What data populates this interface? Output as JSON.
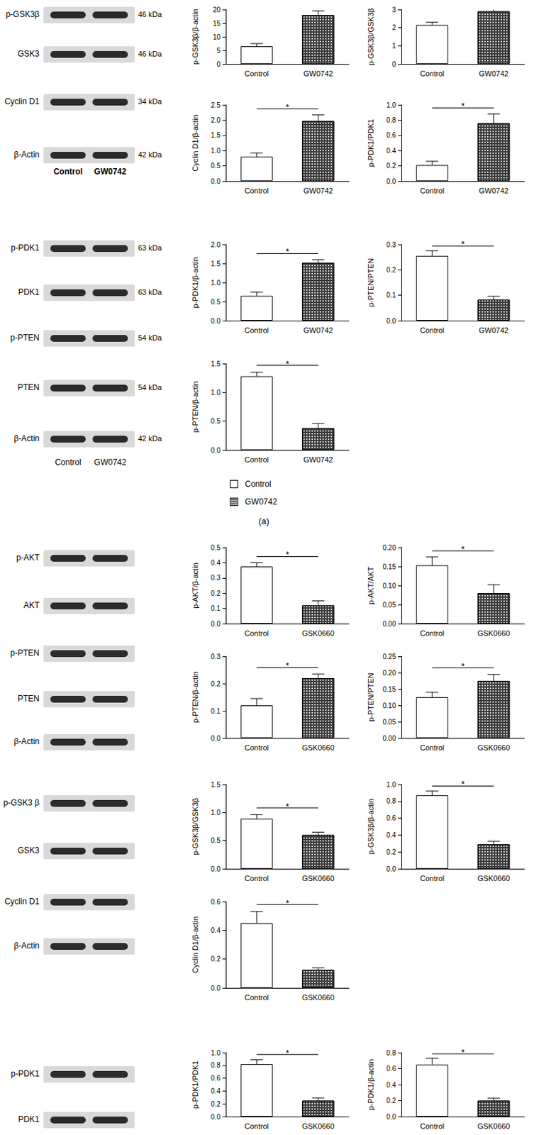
{
  "chart_data": [
    {
      "type": "bar",
      "ylabel": "p-GSK3β/β-actin",
      "categories": [
        "Control",
        "GW0742"
      ],
      "values": [
        6.5,
        18
      ],
      "errors": [
        1.0,
        1.5
      ],
      "colors": [
        "#ffffff",
        "#3a3a3a"
      ],
      "ylim": [
        0,
        20
      ],
      "yticks": [
        0,
        5,
        10,
        15,
        20
      ]
    },
    {
      "type": "bar",
      "ylabel": "p-GSK3β/GSK3β",
      "categories": [
        "Control",
        "GW0742"
      ],
      "values": [
        2.15,
        2.9
      ],
      "errors": [
        0.15,
        0.2
      ],
      "colors": [
        "#ffffff",
        "#3a3a3a"
      ],
      "ylim": [
        0,
        3
      ],
      "yticks": [
        0,
        1,
        2,
        3
      ]
    },
    {
      "type": "bar",
      "ylabel": "Cyclin D1/β-actin",
      "categories": [
        "Control",
        "GW0742"
      ],
      "values": [
        0.8,
        1.97
      ],
      "errors": [
        0.12,
        0.2
      ],
      "colors": [
        "#ffffff",
        "#3a3a3a"
      ],
      "ylim": [
        0,
        2.5
      ],
      "yticks": [
        {
          "value": 0,
          "label": "0.0"
        },
        0.5,
        {
          "value": 1,
          "label": "1.0"
        },
        1.5,
        {
          "value": 2,
          "label": "2.0"
        },
        2.5
      ],
      "annotation": "*"
    },
    {
      "type": "bar",
      "ylabel": "p-PDK1/PDK1",
      "categories": [
        "Control",
        "GW0742"
      ],
      "values": [
        0.21,
        0.76
      ],
      "errors": [
        0.05,
        0.12
      ],
      "colors": [
        "#ffffff",
        "#3a3a3a"
      ],
      "ylim": [
        0,
        1
      ],
      "yticks": [
        {
          "value": 0,
          "label": "0.0"
        },
        0.2,
        0.4,
        0.6,
        0.8,
        {
          "value": 1,
          "label": "1.0"
        }
      ],
      "annotation": "*"
    },
    {
      "type": "bar",
      "ylabel": "p-PDK1/β-actin",
      "categories": [
        "Control",
        "GW0742"
      ],
      "values": [
        0.65,
        1.52
      ],
      "errors": [
        0.1,
        0.08
      ],
      "colors": [
        "#ffffff",
        "#3a3a3a"
      ],
      "ylim": [
        0,
        2
      ],
      "yticks": [
        {
          "value": 0,
          "label": "0.0"
        },
        0.5,
        {
          "value": 1,
          "label": "1.0"
        },
        1.5,
        {
          "value": 2,
          "label": "2.0"
        }
      ],
      "annotation": "*"
    },
    {
      "type": "bar",
      "ylabel": "p-PTEN/PTEN",
      "categories": [
        "Control",
        "GW0742"
      ],
      "values": [
        0.255,
        0.083
      ],
      "errors": [
        0.02,
        0.013
      ],
      "colors": [
        "#ffffff",
        "#3a3a3a"
      ],
      "ylim": [
        0,
        0.3
      ],
      "yticks": [
        {
          "value": 0,
          "label": "0.0"
        },
        0.1,
        0.2,
        0.3
      ],
      "annotation": "*"
    },
    {
      "type": "bar",
      "ylabel": "p-PTEN/β-actin",
      "categories": [
        "Control",
        "GW0742"
      ],
      "values": [
        1.28,
        0.38
      ],
      "errors": [
        0.07,
        0.08
      ],
      "colors": [
        "#ffffff",
        "#3a3a3a"
      ],
      "ylim": [
        0,
        1.5
      ],
      "yticks": [
        {
          "value": 0,
          "label": "0.0"
        },
        0.5,
        {
          "value": 1,
          "label": "1.0"
        },
        1.5
      ],
      "annotation": "*"
    },
    {
      "type": "bar",
      "ylabel": "p-AKT/β-actin",
      "categories": [
        "Control",
        "GSK0660"
      ],
      "values": [
        0.375,
        0.12
      ],
      "errors": [
        0.025,
        0.03
      ],
      "colors": [
        "#ffffff",
        "#3a3a3a"
      ],
      "ylim": [
        0,
        0.5
      ],
      "yticks": [
        {
          "value": 0,
          "label": "0.0"
        },
        0.1,
        0.2,
        0.3,
        0.4,
        0.5
      ],
      "annotation": "*"
    },
    {
      "type": "bar",
      "ylabel": "p-AKT/AKT",
      "categories": [
        "Control",
        "GSK0660"
      ],
      "values": [
        0.153,
        0.08
      ],
      "errors": [
        0.022,
        0.022
      ],
      "colors": [
        "#ffffff",
        "#3a3a3a"
      ],
      "ylim": [
        0,
        0.2
      ],
      "yticks": [
        {
          "value": 0,
          "label": "0.00"
        },
        0.05,
        {
          "value": 0.1,
          "label": "0.10"
        },
        0.15,
        {
          "value": 0.2,
          "label": "0.20"
        }
      ],
      "annotation": "*"
    },
    {
      "type": "bar",
      "ylabel": "p-PTEN/β-actin",
      "categories": [
        "Control",
        "GSK0660"
      ],
      "values": [
        0.12,
        0.22
      ],
      "errors": [
        0.025,
        0.015
      ],
      "colors": [
        "#ffffff",
        "#3a3a3a"
      ],
      "ylim": [
        0,
        0.3
      ],
      "yticks": [
        {
          "value": 0,
          "label": "0.0"
        },
        0.1,
        0.2,
        0.3
      ],
      "annotation": "*"
    },
    {
      "type": "bar",
      "ylabel": "p-PTEN/PTEN",
      "categories": [
        "Control",
        "GSK0660"
      ],
      "values": [
        0.125,
        0.175
      ],
      "errors": [
        0.015,
        0.02
      ],
      "colors": [
        "#ffffff",
        "#3a3a3a"
      ],
      "ylim": [
        0,
        0.25
      ],
      "yticks": [
        {
          "value": 0,
          "label": "0.00"
        },
        0.05,
        {
          "value": 0.1,
          "label": "0.10"
        },
        0.15,
        {
          "value": 0.2,
          "label": "0.20"
        },
        0.25
      ],
      "annotation": "*"
    },
    {
      "type": "bar",
      "ylabel": "p-GSK3β/GSK3β",
      "categories": [
        "Control",
        "GSK0660"
      ],
      "values": [
        0.89,
        0.6
      ],
      "errors": [
        0.07,
        0.05
      ],
      "colors": [
        "#ffffff",
        "#3a3a3a"
      ],
      "ylim": [
        0,
        1.5
      ],
      "yticks": [
        {
          "value": 0,
          "label": "0.0"
        },
        0.5,
        {
          "value": 1,
          "label": "1.0"
        },
        1.5
      ],
      "annotation": "*"
    },
    {
      "type": "bar",
      "ylabel": "p-GSK3β/β-actin",
      "categories": [
        "Control",
        "GSK0660"
      ],
      "values": [
        0.87,
        0.29
      ],
      "errors": [
        0.05,
        0.035
      ],
      "colors": [
        "#ffffff",
        "#3a3a3a"
      ],
      "ylim": [
        0,
        1
      ],
      "yticks": [
        {
          "value": 0,
          "label": "0.0"
        },
        0.2,
        0.4,
        0.6,
        0.8,
        {
          "value": 1,
          "label": "1.0"
        }
      ],
      "annotation": "*"
    },
    {
      "type": "bar",
      "ylabel": "Cyclin D1/β-actin",
      "categories": [
        "Control",
        "GSK0660"
      ],
      "values": [
        0.45,
        0.125
      ],
      "errors": [
        0.08,
        0.015
      ],
      "colors": [
        "#ffffff",
        "#3a3a3a"
      ],
      "ylim": [
        0,
        0.6
      ],
      "yticks": [
        {
          "value": 0,
          "label": "0.0"
        },
        0.2,
        0.4,
        0.6
      ],
      "annotation": "*"
    },
    {
      "type": "bar",
      "ylabel": "p-PDK1/PDK1",
      "categories": [
        "Control",
        "GSK0660"
      ],
      "values": [
        0.82,
        0.25
      ],
      "errors": [
        0.07,
        0.04
      ],
      "colors": [
        "#ffffff",
        "#3a3a3a"
      ],
      "ylim": [
        0,
        1
      ],
      "yticks": [
        {
          "value": 0,
          "label": "0.0"
        },
        0.2,
        0.4,
        0.6,
        0.8,
        {
          "value": 1,
          "label": "1.0"
        }
      ],
      "annotation": "*"
    },
    {
      "type": "bar",
      "ylabel": "p-PDK1/β-actin",
      "categories": [
        "Control",
        "GSK0660"
      ],
      "values": [
        0.65,
        0.2
      ],
      "errors": [
        0.08,
        0.03
      ],
      "colors": [
        "#ffffff",
        "#3a3a3a"
      ],
      "ylim": [
        0,
        0.8
      ],
      "yticks": [
        {
          "value": 0,
          "label": "0.0"
        },
        0.2,
        0.4,
        0.6,
        0.8
      ],
      "annotation": "*"
    }
  ],
  "blots": [
    {
      "rows": [
        {
          "label": "p-GSK3β",
          "kda": "46 kDa"
        },
        {
          "label": "GSK3",
          "kda": "46 kDa"
        },
        {
          "label": "Cyclin D1",
          "kda": "34 kDa"
        },
        {
          "label": "β-Actin",
          "kda": "42 kDa"
        }
      ],
      "lanes": [
        "Control",
        "GW0742"
      ]
    },
    {
      "rows": [
        {
          "label": "p-PDK1",
          "kda": "63 kDa"
        },
        {
          "label": "PDK1",
          "kda": "63 kDa"
        },
        {
          "label": "p-PTEN",
          "kda": "54 kDa"
        },
        {
          "label": "PTEN",
          "kda": "54 kDa"
        },
        {
          "label": "β-Actin",
          "kda": "42 kDa"
        }
      ],
      "lanes": [
        "Control",
        "GW0742"
      ]
    },
    {
      "rows": [
        {
          "label": "p-AKT"
        },
        {
          "label": "AKT"
        },
        {
          "label": "p-PTEN"
        },
        {
          "label": "PTEN"
        },
        {
          "label": "β-Actin"
        }
      ]
    },
    {
      "rows": [
        {
          "label": "p-GSK3 β"
        },
        {
          "label": "GSK3"
        },
        {
          "label": "Cyclin D1"
        },
        {
          "label": "β-Actin"
        }
      ]
    },
    {
      "rows": [
        {
          "label": "p-PDK1"
        },
        {
          "label": "PDK1"
        }
      ]
    }
  ],
  "figure_legend": {
    "labels": [
      "Control",
      "GW0742"
    ],
    "colors": [
      "#ffffff",
      "#3a3a3a"
    ]
  },
  "panel_labels": [
    "(a)"
  ]
}
